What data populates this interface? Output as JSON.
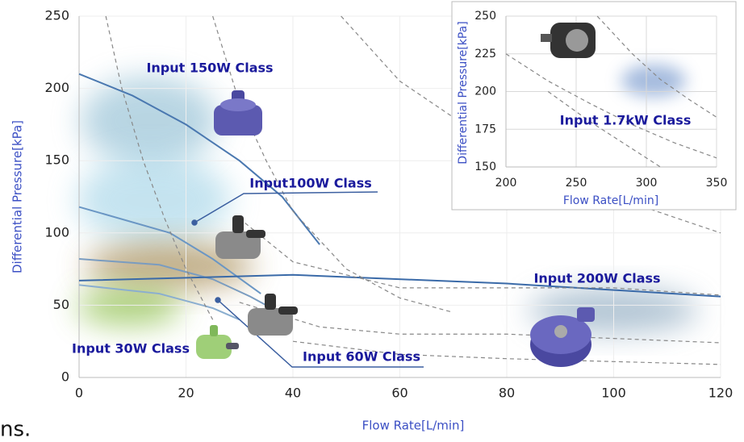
{
  "chart_data": [
    {
      "type": "line",
      "xlabel": "Flow Rate[L/min]",
      "ylabel": "Differential Pressure[kPa]",
      "xlim": [
        0,
        120
      ],
      "ylim": [
        0,
        250
      ],
      "xticks": [
        0,
        20,
        40,
        60,
        80,
        100,
        120
      ],
      "yticks": [
        0,
        50,
        100,
        150,
        200,
        250
      ],
      "grid": true,
      "annotations": [
        "Input 150W Class",
        "Input100W Class",
        "Input 200W Class",
        "Input 30W Class",
        "Input 60W Class"
      ],
      "series": [
        {
          "color": "#4a78b0",
          "dash": false,
          "x": [
            0,
            10,
            20,
            30,
            38,
            45
          ],
          "values": [
            210,
            195,
            175,
            150,
            125,
            92
          ]
        },
        {
          "color": "#6a96c4",
          "dash": false,
          "x": [
            0,
            17,
            25,
            34
          ],
          "values": [
            118,
            100,
            82,
            58
          ]
        },
        {
          "color": "#7a9cc0",
          "dash": false,
          "x": [
            0,
            15,
            25,
            32,
            36
          ],
          "values": [
            82,
            78,
            68,
            56,
            48
          ]
        },
        {
          "color": "#8aaed0",
          "dash": false,
          "x": [
            0,
            15,
            25,
            30
          ],
          "values": [
            64,
            58,
            48,
            40
          ]
        },
        {
          "color": "#3a6aa8",
          "dash": false,
          "x": [
            0,
            40,
            80,
            120
          ],
          "values": [
            67,
            71,
            65,
            56
          ]
        },
        {
          "color": "#888888",
          "dash": true,
          "x": [
            5,
            8,
            12,
            16,
            20,
            25
          ],
          "values": [
            250,
            200,
            150,
            110,
            75,
            40
          ]
        },
        {
          "color": "#888888",
          "dash": true,
          "x": [
            25,
            30,
            35,
            40,
            50,
            60,
            70
          ],
          "values": [
            250,
            190,
            150,
            115,
            75,
            55,
            45
          ]
        },
        {
          "color": "#888888",
          "dash": true,
          "x": [
            49,
            60,
            70,
            80,
            100,
            120
          ],
          "values": [
            250,
            205,
            180,
            160,
            125,
            100
          ]
        },
        {
          "color": "#888888",
          "dash": true,
          "x": [
            30,
            40,
            60,
            80,
            100,
            120
          ],
          "values": [
            110,
            80,
            62,
            62,
            62,
            57
          ]
        },
        {
          "color": "#888888",
          "dash": true,
          "x": [
            30,
            45,
            60,
            80,
            100,
            120
          ],
          "values": [
            52,
            35,
            30,
            30,
            27,
            24
          ]
        },
        {
          "color": "#888888",
          "dash": true,
          "x": [
            40,
            60,
            80,
            100,
            120
          ],
          "values": [
            25,
            16,
            13,
            11,
            9
          ]
        }
      ]
    },
    {
      "type": "line",
      "xlabel": "Flow Rate[L/min]",
      "ylabel": "Differential Pressure[kPa]",
      "xlim": [
        200,
        350
      ],
      "ylim": [
        150,
        250
      ],
      "xticks": [
        200,
        250,
        300,
        350
      ],
      "yticks": [
        150,
        175,
        200,
        225,
        250
      ],
      "grid": true,
      "annotations": [
        "Input 1.7kW Class"
      ],
      "series": [
        {
          "color": "#888888",
          "dash": true,
          "x": [
            200,
            230,
            260,
            290,
            320,
            350
          ],
          "values": [
            225,
            207,
            192,
            178,
            166,
            156
          ]
        },
        {
          "color": "#888888",
          "dash": true,
          "x": [
            265,
            290,
            310,
            330,
            350
          ],
          "values": [
            250,
            225,
            208,
            195,
            183
          ]
        },
        {
          "color": "#888888",
          "dash": true,
          "x": [
            230,
            260,
            290,
            310
          ],
          "values": [
            200,
            180,
            162,
            150
          ]
        }
      ]
    }
  ],
  "footer_text": "ns."
}
